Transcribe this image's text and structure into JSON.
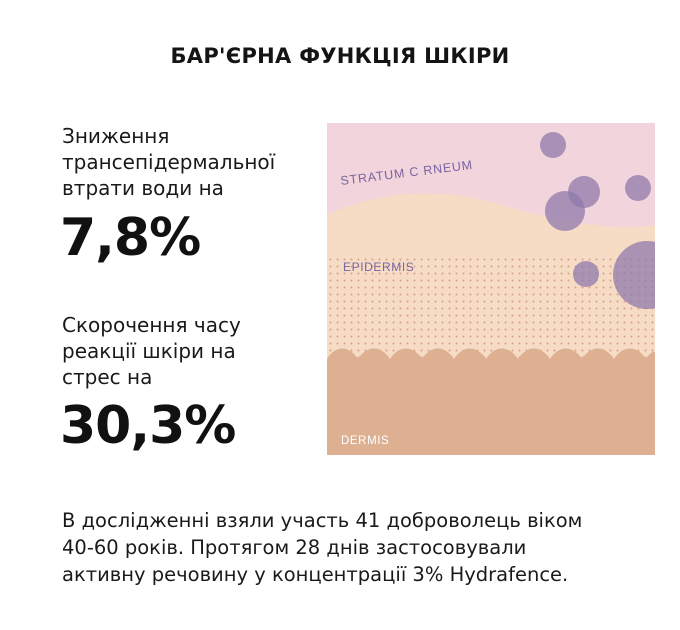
{
  "title": "БАР'ЄРНА ФУНКЦІЯ ШКІРИ",
  "stats": [
    {
      "label": "Зниження\nтрансепідермальної\nвтрати води на",
      "value": "7,8%"
    },
    {
      "label": "Скорочення часу\nреакції шкіри на\nстрес на",
      "value": "30,3%"
    }
  ],
  "illustration": {
    "layer_top": "STRATUM C   RNEUM",
    "layer_middle": "EPIDERMIS",
    "layer_bottom": "DERMIS",
    "colors": {
      "stratum_corneum": "#f2d4dc",
      "epidermis": "#f7dcc5",
      "dermis": "#ddb092",
      "bubbles": "#8f7aab",
      "label_text_top": "#7a64a4",
      "label_text_middle": "#7a64a4",
      "label_text_bottom": "#ffffff",
      "dots": "#d4a08a"
    }
  },
  "footnote": "В дослідженні взяли участь 41 доброволець віком\n40-60 років. Протягом 28 днів застосовували\nактивну речовину у концентрації 3% Hydrafence."
}
